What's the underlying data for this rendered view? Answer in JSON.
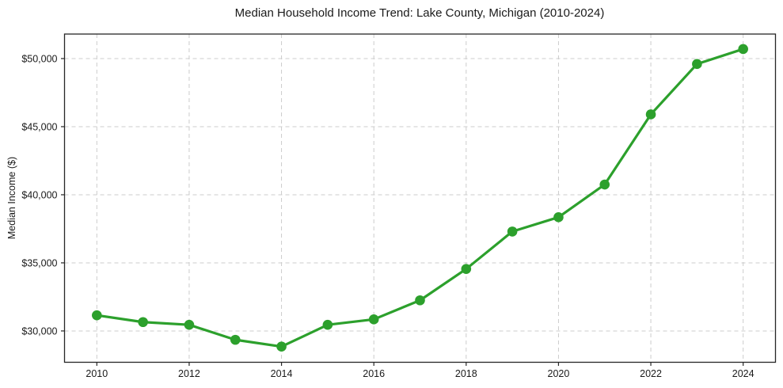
{
  "chart_data": {
    "type": "line",
    "title": "Median Household Income Trend: Lake County, Michigan (2010-2024)",
    "xlabel": "",
    "ylabel": "Median Income ($)",
    "x": [
      2010,
      2011,
      2012,
      2013,
      2014,
      2015,
      2016,
      2017,
      2018,
      2019,
      2020,
      2021,
      2022,
      2023,
      2024
    ],
    "values": [
      31150,
      30650,
      30450,
      29350,
      28850,
      30450,
      30850,
      32250,
      34550,
      37300,
      38350,
      40750,
      45900,
      49600,
      50700
    ],
    "series_name": "Median Household Income",
    "xlim": [
      2009.3,
      2024.7
    ],
    "ylim": [
      27700,
      51800
    ],
    "xticks": {
      "values": [
        2010,
        2012,
        2014,
        2016,
        2018,
        2020,
        2022,
        2024
      ],
      "labels": [
        "2010",
        "2012",
        "2014",
        "2016",
        "2018",
        "2020",
        "2022",
        "2024"
      ]
    },
    "yticks": {
      "values": [
        30000,
        35000,
        40000,
        45000,
        50000
      ],
      "labels": [
        "$30,000",
        "$35,000",
        "$40,000",
        "$45,000",
        "$50,000"
      ]
    },
    "grid": true,
    "grid_style": "dashed",
    "legend_position": "none",
    "colors": {
      "line": "#2ca02c",
      "marker": "#2ca02c",
      "grid": "#cccccc",
      "spine": "#262626",
      "text": "#1a1a1a",
      "background": "#ffffff"
    }
  }
}
